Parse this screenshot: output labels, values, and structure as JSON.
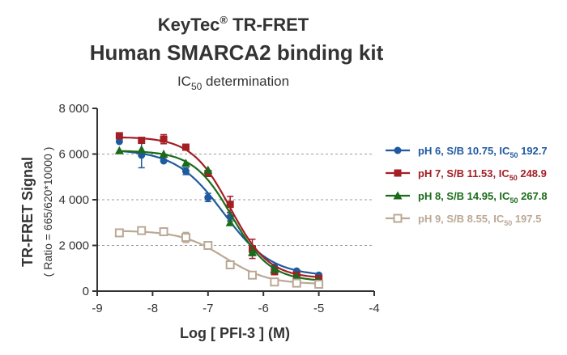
{
  "chart_data": {
    "type": "scatter",
    "title_line1": "KeyTec",
    "title_reg": "®",
    "title_line1b": " TR-FRET",
    "title_line2": "Human SMARCA2 binding kit",
    "subtitle_main": "IC",
    "subtitle_sub": "50",
    "subtitle_rest": " determination",
    "ylabel": "TR-FRET Signal",
    "ylabel_sub": "( Ratio = 665/620*10000 )",
    "xlabel": "Log [ PFI-3 ]  (M)",
    "xlim": [
      -9,
      -4
    ],
    "ylim": [
      0,
      8000
    ],
    "xticks": [
      "-9",
      "-8",
      "-7",
      "-6",
      "-5",
      "-4"
    ],
    "yticks": [
      "0",
      "2 000",
      "4 000",
      "6 000",
      "8 000"
    ],
    "grid": "horizontal-dashed",
    "legend_position": "right",
    "series": [
      {
        "name_pre": "pH 6, S/B 10.75, IC",
        "name_sub": "50",
        "name_post": " 192.7",
        "color": "#1f5a9e",
        "marker": "circle",
        "x": [
          -8.6,
          -8.2,
          -7.8,
          -7.4,
          -7.0,
          -6.6,
          -6.2,
          -5.8,
          -5.4,
          -5.0
        ],
        "y": [
          6550,
          5950,
          5700,
          5250,
          4100,
          3250,
          1750,
          1050,
          880,
          700
        ],
        "err": [
          0,
          550,
          0,
          150,
          180,
          180,
          200,
          0,
          0,
          0
        ],
        "curve": {
          "bottom": 650,
          "top": 6200,
          "logic50": -6.72,
          "hill": 1.0
        }
      },
      {
        "name_pre": "pH 7, S/B 11.53, IC",
        "name_sub": "50",
        "name_post": " 248.9",
        "color": "#a31f24",
        "marker": "square",
        "x": [
          -8.6,
          -8.2,
          -7.8,
          -7.4,
          -7.0,
          -6.6,
          -6.2,
          -5.8,
          -5.4,
          -5.0
        ],
        "y": [
          6800,
          6600,
          6650,
          6300,
          5150,
          3800,
          1850,
          850,
          700,
          550
        ],
        "err": [
          0,
          0,
          200,
          0,
          0,
          350,
          420,
          0,
          0,
          0
        ],
        "curve": {
          "bottom": 550,
          "top": 6750,
          "logic50": -6.6,
          "hill": 1.25
        }
      },
      {
        "name_pre": "pH 8, S/B 14.95, IC",
        "name_sub": "50",
        "name_post": " 267.8",
        "color": "#1a6b1a",
        "marker": "triangle",
        "x": [
          -8.6,
          -8.2,
          -7.8,
          -7.4,
          -7.0,
          -6.6,
          -6.2,
          -5.8,
          -5.4,
          -5.0
        ],
        "y": [
          6150,
          6200,
          6000,
          5600,
          5300,
          3000,
          1700,
          950,
          650,
          450
        ],
        "err": [
          0,
          0,
          0,
          0,
          0,
          0,
          0,
          0,
          0,
          0
        ],
        "curve": {
          "bottom": 420,
          "top": 6150,
          "logic50": -6.57,
          "hill": 1.25
        }
      },
      {
        "name_pre": "pH 9, S/B 8.55, IC",
        "name_sub": "50",
        "name_post": " 197.5",
        "color": "#bba895",
        "marker": "open-square",
        "x": [
          -8.6,
          -8.2,
          -7.8,
          -7.4,
          -7.0,
          -6.6,
          -6.2,
          -5.8,
          -5.4,
          -5.0
        ],
        "y": [
          2550,
          2650,
          2600,
          2350,
          2000,
          1150,
          700,
          400,
          350,
          300
        ],
        "err": [
          0,
          0,
          0,
          220,
          0,
          150,
          0,
          0,
          0,
          0
        ],
        "curve": {
          "bottom": 300,
          "top": 2650,
          "logic50": -6.7,
          "hill": 1.1
        }
      }
    ]
  }
}
